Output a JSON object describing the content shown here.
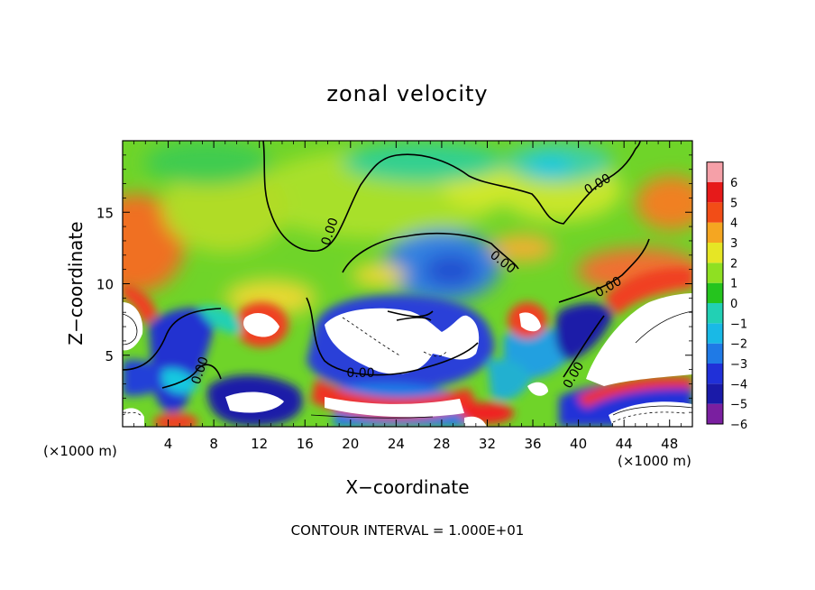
{
  "chart_data": {
    "type": "heatmap",
    "title": "zonal velocity",
    "xlabel": "X−coordinate",
    "ylabel": "Z−coordinate",
    "x_unit_label": "(×1000 m)",
    "z_unit_label": "(×1000 m)",
    "footer": "CONTOUR INTERVAL = 1.000E+01",
    "xlim": [
      0,
      50
    ],
    "ylim": [
      0,
      20
    ],
    "x_ticks": [
      4,
      8,
      12,
      16,
      20,
      24,
      28,
      32,
      36,
      40,
      44,
      48
    ],
    "y_ticks": [
      5,
      10,
      15
    ],
    "colorbar": {
      "levels": [
        -6,
        -5,
        -4,
        -3,
        -2,
        -1,
        0,
        1,
        2,
        3,
        4,
        5,
        6
      ],
      "colors": [
        "#7a1fa0",
        "#1a1aa8",
        "#2030d8",
        "#1f7ae6",
        "#19b9e6",
        "#22d0b4",
        "#25c41e",
        "#8fe022",
        "#e6e625",
        "#f5a621",
        "#f24d17",
        "#e61a1a",
        "#f5a0a8"
      ]
    },
    "contour_labels": [
      "0.00",
      "0.00",
      "0.00",
      "0.00",
      "0.00",
      "0.00",
      "0.00"
    ]
  }
}
